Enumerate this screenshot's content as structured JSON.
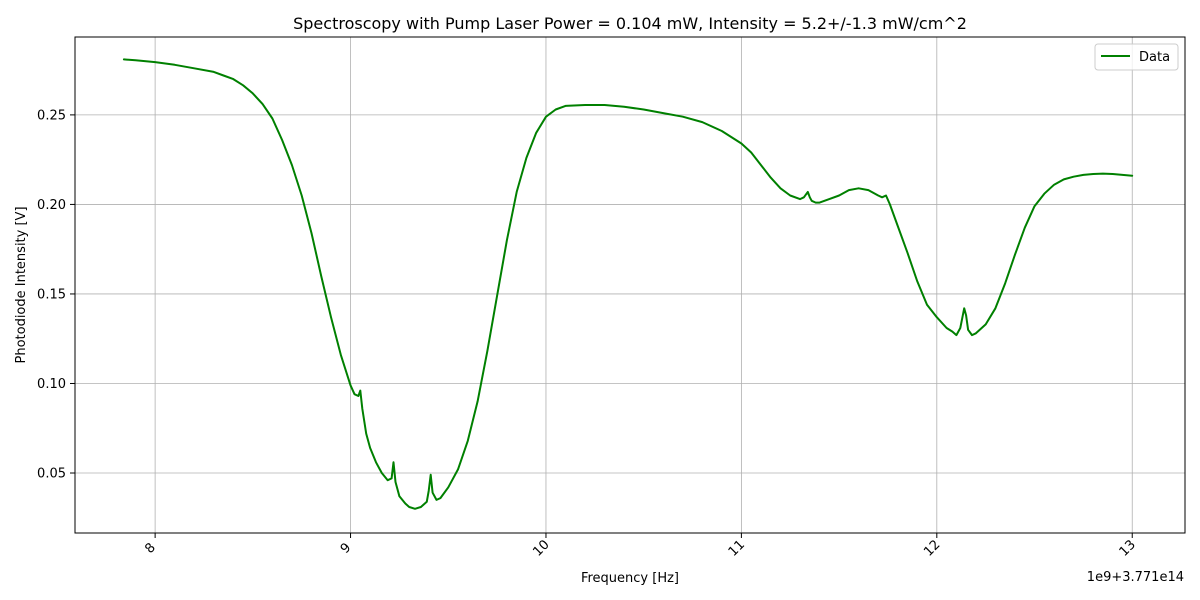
{
  "chart_data": {
    "type": "line",
    "title": "Spectroscopy with Pump Laser Power = 0.104 mW, Intensity = 5.2+/-1.3 mW/cm^2",
    "xlabel": "Frequency [Hz]",
    "ylabel": "Photodiode Intensity [V]",
    "x_offset_label": "1e9+3.771e14",
    "xlim": [
      7.59,
      13.27
    ],
    "ylim": [
      0.0165,
      0.2935
    ],
    "x_ticks": [
      8,
      9,
      10,
      11,
      12,
      13
    ],
    "x_tick_labels": [
      "8",
      "9",
      "10",
      "11",
      "12",
      "13"
    ],
    "y_ticks": [
      0.05,
      0.1,
      0.15,
      0.2,
      0.25
    ],
    "y_tick_labels": [
      "0.05",
      "0.10",
      "0.15",
      "0.20",
      "0.25"
    ],
    "grid": true,
    "legend_position": "top-right",
    "x_tick_rotation": 45,
    "series": [
      {
        "name": "Data",
        "color": "#008000",
        "x": [
          7.84,
          7.9,
          8.0,
          8.1,
          8.2,
          8.3,
          8.35,
          8.4,
          8.45,
          8.5,
          8.55,
          8.6,
          8.65,
          8.7,
          8.75,
          8.8,
          8.85,
          8.9,
          8.95,
          9.0,
          9.02,
          9.04,
          9.05,
          9.06,
          9.08,
          9.1,
          9.13,
          9.16,
          9.19,
          9.21,
          9.22,
          9.23,
          9.25,
          9.28,
          9.3,
          9.33,
          9.36,
          9.39,
          9.4,
          9.41,
          9.42,
          9.44,
          9.46,
          9.5,
          9.55,
          9.6,
          9.65,
          9.7,
          9.75,
          9.8,
          9.85,
          9.9,
          9.95,
          10.0,
          10.05,
          10.1,
          10.2,
          10.3,
          10.4,
          10.5,
          10.6,
          10.7,
          10.8,
          10.9,
          11.0,
          11.05,
          11.1,
          11.15,
          11.2,
          11.25,
          11.3,
          11.32,
          11.34,
          11.35,
          11.36,
          11.38,
          11.4,
          11.45,
          11.5,
          11.55,
          11.6,
          11.65,
          11.7,
          11.72,
          11.74,
          11.76,
          11.8,
          11.85,
          11.9,
          11.95,
          12.0,
          12.05,
          12.08,
          12.1,
          12.12,
          12.14,
          12.15,
          12.16,
          12.18,
          12.2,
          12.25,
          12.3,
          12.35,
          12.4,
          12.45,
          12.5,
          12.55,
          12.6,
          12.65,
          12.7,
          12.75,
          12.8,
          12.85,
          12.9,
          12.95,
          13.0
        ],
        "y": [
          0.281,
          0.2805,
          0.2795,
          0.278,
          0.276,
          0.274,
          0.272,
          0.27,
          0.2665,
          0.262,
          0.256,
          0.248,
          0.236,
          0.222,
          0.205,
          0.184,
          0.16,
          0.137,
          0.116,
          0.099,
          0.094,
          0.093,
          0.096,
          0.086,
          0.072,
          0.064,
          0.056,
          0.05,
          0.046,
          0.047,
          0.056,
          0.045,
          0.037,
          0.033,
          0.031,
          0.03,
          0.031,
          0.034,
          0.04,
          0.049,
          0.039,
          0.035,
          0.036,
          0.042,
          0.052,
          0.068,
          0.09,
          0.118,
          0.149,
          0.18,
          0.207,
          0.226,
          0.24,
          0.249,
          0.253,
          0.255,
          0.2555,
          0.2555,
          0.2545,
          0.253,
          0.251,
          0.249,
          0.246,
          0.241,
          0.234,
          0.229,
          0.222,
          0.215,
          0.209,
          0.205,
          0.203,
          0.204,
          0.207,
          0.204,
          0.202,
          0.201,
          0.201,
          0.203,
          0.205,
          0.208,
          0.209,
          0.208,
          0.205,
          0.204,
          0.205,
          0.2,
          0.188,
          0.173,
          0.157,
          0.144,
          0.137,
          0.131,
          0.129,
          0.127,
          0.131,
          0.142,
          0.138,
          0.13,
          0.127,
          0.128,
          0.133,
          0.142,
          0.156,
          0.172,
          0.187,
          0.199,
          0.206,
          0.211,
          0.214,
          0.2155,
          0.2165,
          0.217,
          0.2172,
          0.217,
          0.2165,
          0.216
        ]
      }
    ]
  }
}
